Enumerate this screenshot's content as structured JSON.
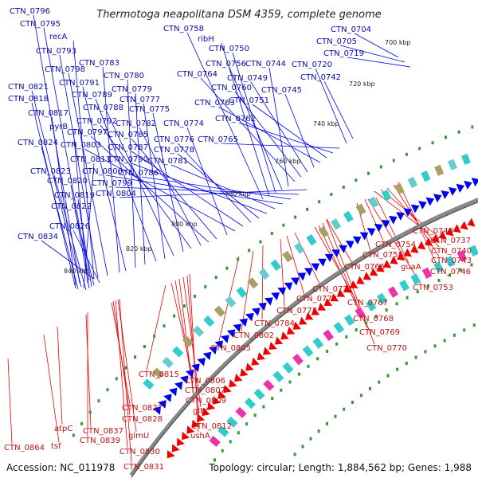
{
  "title": "Thermotoga neapolitana DSM 4359, complete genome",
  "footer": {
    "accession": "Accession: NC_011978",
    "topology": "Topology: circular; Length: 1,884,562 bp; Genes: 1,988"
  },
  "ticks": [
    "700 kbp",
    "720 kbp",
    "740 kbp",
    "760 kbp",
    "780 kbp",
    "800 kbp",
    "820 kbp",
    "840 kbp"
  ],
  "colors": {
    "forward": "#0000ee",
    "reverse": "#ee0000",
    "forward_label": "#0a0aa8",
    "reverse_label": "#c01010",
    "backbone": "#888888",
    "cog_teal": "#33cccc",
    "cog_magenta": "#ee33aa",
    "cog_olive": "#aaa066",
    "dots": "#339933"
  },
  "forward_labels": [
    "CTN_0796",
    "CTN_0795",
    "recA",
    "CTN_0793",
    "CTN_0798",
    "CTN_0783",
    "CTN_0791",
    "CTN_0780",
    "CTN_0779",
    "CTN_0821",
    "CTN_0789",
    "CTN_0777",
    "CTN_0818",
    "CTN_0788",
    "CTN_0775",
    "CTN_0817",
    "CTN_0792",
    "CTN_0782",
    "pyrB",
    "CTN_0797",
    "CTN_0785",
    "CTN_0774",
    "CTN_0824",
    "CTN_0803",
    "CTN_0787",
    "CTN_0776",
    "CTN_0778",
    "CTN_0813",
    "CTN_0790",
    "CTN_0781",
    "CTN_0823",
    "CTN_0800",
    "CTN_0786",
    "CTN_0820",
    "CTN_0799",
    "CTN_0819",
    "CTN_0804",
    "CTN_0822",
    "CTN_0826",
    "CTN_0834",
    "CTN_0758",
    "ribH",
    "CTN_0750",
    "CTN_0756",
    "CTN_0744",
    "CTN_0764",
    "CTN_0760",
    "CTN_0749",
    "CTN_0745",
    "CTN_0763",
    "CTN_0751",
    "CTN_0762",
    "CTN_0765",
    "CTN_0720",
    "CTN_0742",
    "CTN_0704",
    "CTN_0705",
    "CTN_0719"
  ],
  "reverse_labels": [
    "CTN_0748",
    "CTN_0737",
    "CTN_0754",
    "CTN_0740",
    "CTN_0755",
    "CTN_0743",
    "CTN_0766",
    "guaA",
    "CTN_0746",
    "CTN_0753",
    "CTN_0771",
    "CTN_0772",
    "CTN_0767",
    "CTN_0773",
    "CTN_0768",
    "CTN_0784",
    "CTN_0769",
    "CTN_0802",
    "CTN_0770",
    "CTN_0805",
    "CTN_0815",
    "CTN_0806",
    "CTN_0807",
    "CTN_0809",
    "gltX",
    "CTN_0812",
    "ushA",
    "CTN_0827",
    "CTN_0828",
    "CTN_0837",
    "atpC",
    "CTN_0839",
    "glmU",
    "CTN_0830",
    "CTN_0831",
    "CTN_0864",
    "tsf"
  ]
}
